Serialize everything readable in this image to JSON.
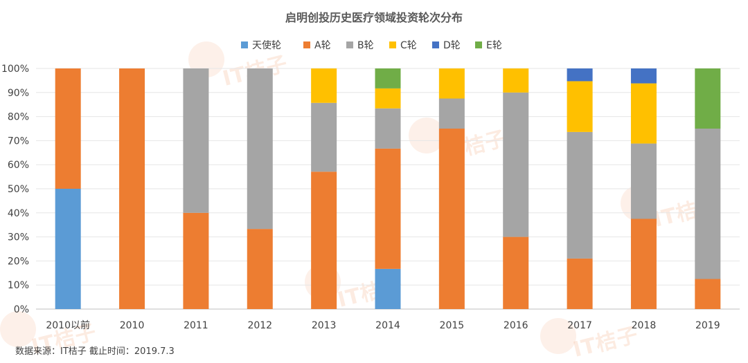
{
  "chart_data": {
    "type": "bar",
    "stacked": true,
    "title": "启明创投历史医疗领域投资轮次分布",
    "categories": [
      "2010以前",
      "2010",
      "2011",
      "2012",
      "2013",
      "2014",
      "2015",
      "2016",
      "2017",
      "2018",
      "2019"
    ],
    "series": [
      {
        "name": "天使轮",
        "color": "#5b9bd5",
        "values": [
          50,
          0,
          0,
          0,
          0,
          16.7,
          0,
          0,
          0,
          0,
          0
        ]
      },
      {
        "name": "A轮",
        "color": "#ed7d31",
        "values": [
          50,
          100,
          40,
          33.3,
          57.1,
          50,
          75,
          30,
          21,
          37.5,
          12.5
        ]
      },
      {
        "name": "B轮",
        "color": "#a5a5a5",
        "values": [
          0,
          0,
          60,
          66.7,
          28.6,
          16.7,
          12.5,
          60,
          52.6,
          31.3,
          62.5
        ]
      },
      {
        "name": "C轮",
        "color": "#ffc000",
        "values": [
          0,
          0,
          0,
          0,
          14.3,
          8.3,
          12.5,
          10,
          21.1,
          25,
          0
        ]
      },
      {
        "name": "D轮",
        "color": "#4472c4",
        "values": [
          0,
          0,
          0,
          0,
          0,
          0,
          0,
          0,
          5.3,
          6.2,
          0
        ]
      },
      {
        "name": "E轮",
        "color": "#70ad47",
        "values": [
          0,
          0,
          0,
          0,
          0,
          8.3,
          0,
          0,
          0,
          0,
          25
        ]
      }
    ],
    "ylim": [
      0,
      100
    ],
    "yticks": [
      "0%",
      "10%",
      "20%",
      "30%",
      "40%",
      "50%",
      "60%",
      "70%",
      "80%",
      "90%",
      "100%"
    ],
    "grid": true,
    "legend_position": "top"
  },
  "footer": {
    "source": "数据来源：IT桔子  截止时间：2019.7.3"
  },
  "watermark_text": "IT桔子"
}
